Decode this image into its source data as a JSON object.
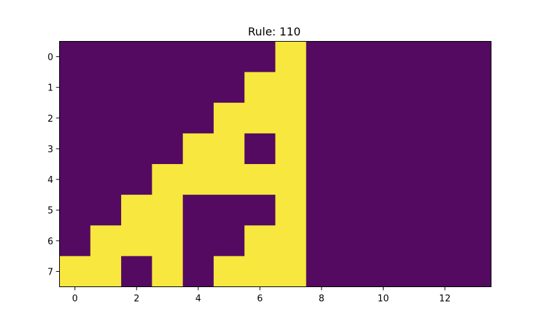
{
  "chart_data": {
    "type": "heatmap",
    "title": "Rule: 110",
    "xlabel": "",
    "ylabel": "",
    "rows": 8,
    "cols": 14,
    "xlim": [
      -0.5,
      13.5
    ],
    "ylim": [
      7.5,
      -0.5
    ],
    "x_ticks": [
      0,
      2,
      4,
      6,
      8,
      10,
      12
    ],
    "y_ticks": [
      0,
      1,
      2,
      3,
      4,
      5,
      6,
      7
    ],
    "grid": false,
    "colors": {
      "0": "#540a61",
      "1": "#f7e73e"
    },
    "values": [
      [
        0,
        0,
        0,
        0,
        0,
        0,
        0,
        1,
        0,
        0,
        0,
        0,
        0,
        0
      ],
      [
        0,
        0,
        0,
        0,
        0,
        0,
        1,
        1,
        0,
        0,
        0,
        0,
        0,
        0
      ],
      [
        0,
        0,
        0,
        0,
        0,
        1,
        1,
        1,
        0,
        0,
        0,
        0,
        0,
        0
      ],
      [
        0,
        0,
        0,
        0,
        1,
        1,
        0,
        1,
        0,
        0,
        0,
        0,
        0,
        0
      ],
      [
        0,
        0,
        0,
        1,
        1,
        1,
        1,
        1,
        0,
        0,
        0,
        0,
        0,
        0
      ],
      [
        0,
        0,
        1,
        1,
        0,
        0,
        0,
        1,
        0,
        0,
        0,
        0,
        0,
        0
      ],
      [
        0,
        1,
        1,
        1,
        0,
        0,
        1,
        1,
        0,
        0,
        0,
        0,
        0,
        0
      ],
      [
        1,
        1,
        0,
        1,
        0,
        1,
        1,
        1,
        0,
        0,
        0,
        0,
        0,
        0
      ]
    ]
  }
}
